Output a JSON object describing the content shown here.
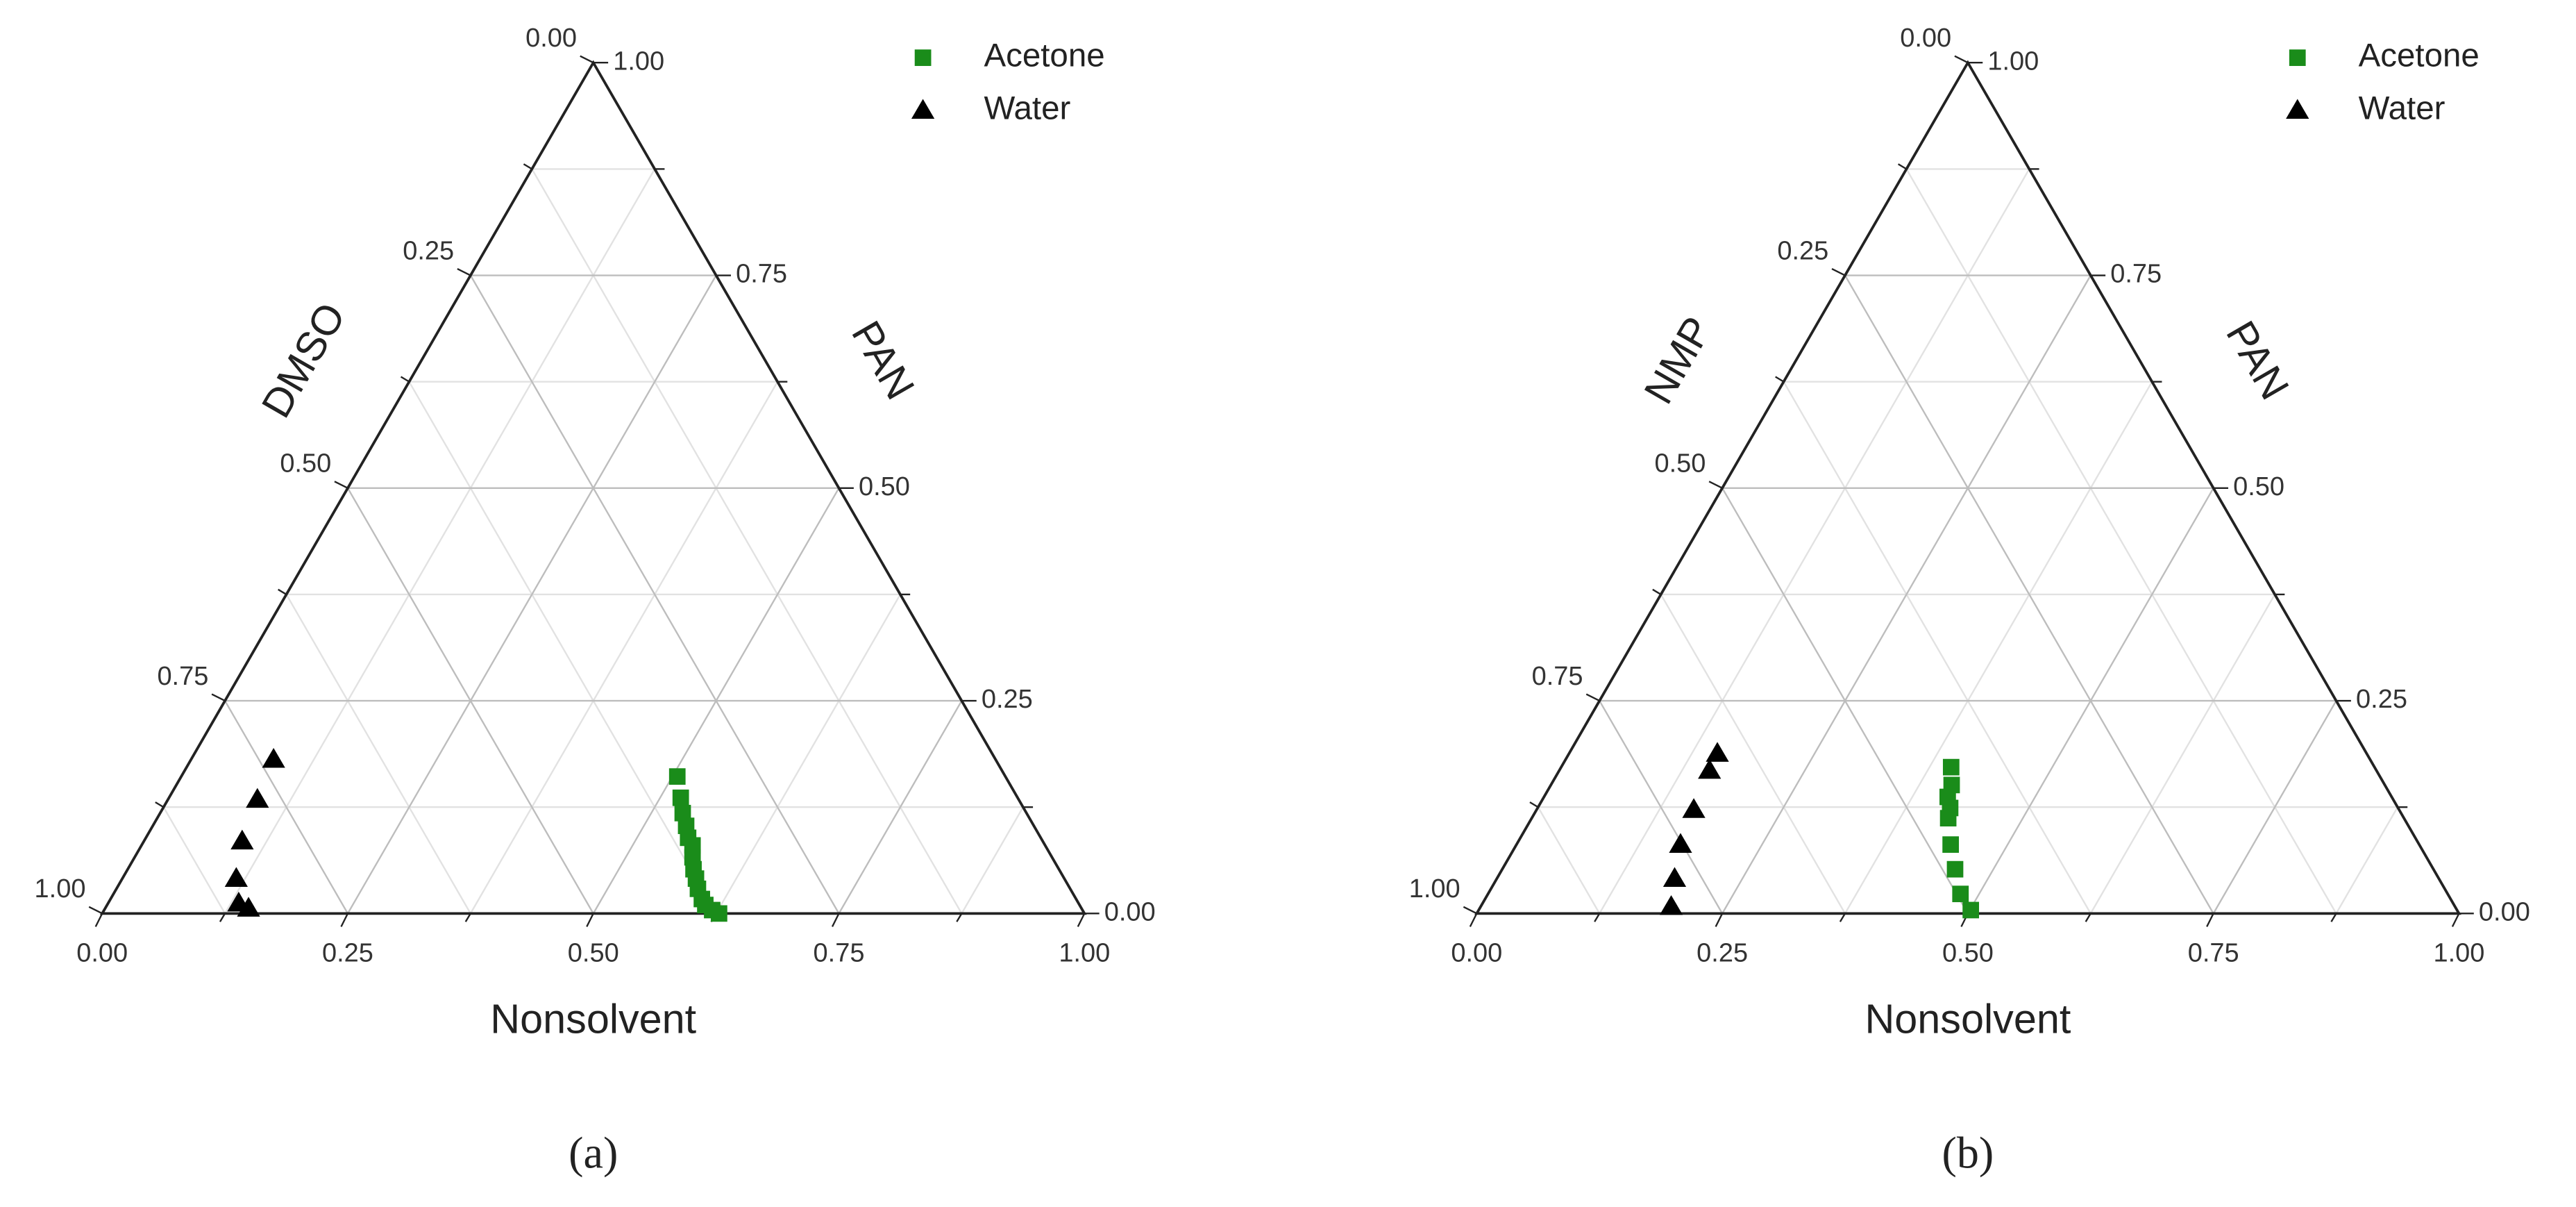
{
  "chart_data": [
    {
      "type": "ternary",
      "caption": "(a)",
      "left_label": "DMSO",
      "right_label": "PAN",
      "bottom_label": "Nonsolvent",
      "bottom_ticks": [
        {
          "value": 0,
          "label": "0.00"
        },
        {
          "value": 0.25,
          "label": "0.25"
        },
        {
          "value": 0.5,
          "label": "0.50"
        },
        {
          "value": 0.75,
          "label": "0.75"
        },
        {
          "value": 1,
          "label": "1.00"
        }
      ],
      "left_ticks": [
        {
          "value": 0,
          "label": "0.00"
        },
        {
          "value": 0.25,
          "label": "0.25"
        },
        {
          "value": 0.5,
          "label": "0.50"
        },
        {
          "value": 0.75,
          "label": "0.75"
        },
        {
          "value": 1,
          "label": "1.00"
        }
      ],
      "right_ticks": [
        {
          "value": 0,
          "label": "0.00"
        },
        {
          "value": 0.25,
          "label": "0.25"
        },
        {
          "value": 0.5,
          "label": "0.50"
        },
        {
          "value": 0.75,
          "label": "0.75"
        },
        {
          "value": 1,
          "label": "1.00"
        }
      ],
      "minor_ticks": [
        0.125,
        0.375,
        0.625,
        0.875
      ],
      "grid": true,
      "legend": "upper right",
      "series": [
        {
          "name": "Acetone",
          "color": "#1a8c1a",
          "marker": "square",
          "x": [
            0.505,
            0.521,
            0.532,
            0.543,
            0.552,
            0.561,
            0.568,
            0.576,
            0.584,
            0.592,
            0.602,
            0.609,
            0.619,
            0.628
          ],
          "values": [
            0.161,
            0.136,
            0.118,
            0.103,
            0.089,
            0.08,
            0.066,
            0.052,
            0.041,
            0.029,
            0.017,
            0.01,
            0.004,
            0
          ]
        },
        {
          "name": "Water",
          "color": "#000000",
          "marker": "triangle",
          "x": [
            0.084,
            0.091,
            0.1,
            0.116,
            0.133,
            0.146
          ],
          "values": [
            0.181,
            0.134,
            0.085,
            0.041,
            0.012,
            0.006
          ]
        }
      ]
    },
    {
      "type": "ternary",
      "caption": "(b)",
      "left_label": "NMP",
      "right_label": "PAN",
      "bottom_label": "Nonsolvent",
      "bottom_ticks": [
        {
          "value": 0,
          "label": "0.00"
        },
        {
          "value": 0.25,
          "label": "0.25"
        },
        {
          "value": 0.5,
          "label": "0.50"
        },
        {
          "value": 0.75,
          "label": "0.75"
        },
        {
          "value": 1,
          "label": "1.00"
        }
      ],
      "left_ticks": [
        {
          "value": 0,
          "label": "0.00"
        },
        {
          "value": 0.25,
          "label": "0.25"
        },
        {
          "value": 0.5,
          "label": "0.50"
        },
        {
          "value": 0.75,
          "label": "0.75"
        },
        {
          "value": 1,
          "label": "1.00"
        }
      ],
      "right_ticks": [
        {
          "value": 0,
          "label": "0.00"
        },
        {
          "value": 0.25,
          "label": "0.25"
        },
        {
          "value": 0.5,
          "label": "0.50"
        },
        {
          "value": 0.75,
          "label": "0.75"
        },
        {
          "value": 1,
          "label": "1.00"
        }
      ],
      "minor_ticks": [
        0.125,
        0.375,
        0.625,
        0.875
      ],
      "grid": true,
      "legend": "upper right",
      "series": [
        {
          "name": "Acetone",
          "color": "#1a8c1a",
          "marker": "square",
          "x": [
            0.397,
            0.408,
            0.411,
            0.42,
            0.424,
            0.442,
            0.461,
            0.481,
            0.501
          ],
          "values": [
            0.172,
            0.151,
            0.137,
            0.124,
            0.112,
            0.081,
            0.052,
            0.023,
            0.004
          ]
        },
        {
          "name": "Water",
          "color": "#000000",
          "marker": "triangle",
          "x": [
            0.151,
            0.153,
            0.16,
            0.167,
            0.181,
            0.194
          ],
          "values": [
            0.188,
            0.168,
            0.122,
            0.081,
            0.041,
            0.008
          ]
        }
      ]
    }
  ]
}
